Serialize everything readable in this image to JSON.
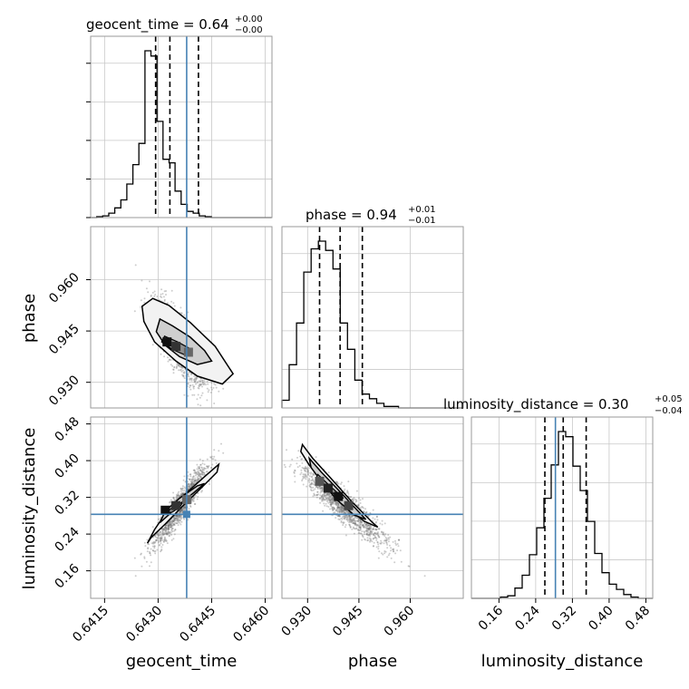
{
  "chart_data": {
    "type": "corner",
    "parameters": [
      "geocent_time",
      "phase",
      "luminosity_distance"
    ],
    "truths": {
      "geocent_time": 0.6438,
      "phase": null,
      "luminosity_distance": 0.283
    },
    "colors": {
      "truth": "#4682b4",
      "hist": "#000000",
      "grid": "#c8c8c8",
      "frame": "#9a9a9a",
      "scatter": "#707070"
    },
    "titles": [
      {
        "label": "geocent_time = 0.64",
        "plus": "+0.00",
        "minus": "−0.00"
      },
      {
        "label": "phase = 0.94",
        "plus": "+0.01",
        "minus": "−0.01"
      },
      {
        "label": "luminosity_distance = 0.30",
        "plus": "+0.05",
        "minus": "−0.04"
      }
    ],
    "axis_labels": {
      "geocent_time": "geocent_time",
      "phase": "phase",
      "luminosity_distance": "luminosity_distance"
    },
    "ranges": {
      "geocent_time": [
        0.64111,
        0.64619
      ],
      "phase": [
        0.9225,
        0.9755
      ],
      "luminosity_distance": [
        0.1,
        0.495
      ]
    },
    "ticks": {
      "geocent_time": {
        "values": [
          0.6415,
          0.643,
          0.6445,
          0.646
        ],
        "labels": [
          "0.6415",
          "0.6430",
          "0.6445",
          "0.6460"
        ]
      },
      "phase": {
        "values": [
          0.93,
          0.945,
          0.96
        ],
        "labels": [
          "0.930",
          "0.945",
          "0.960"
        ]
      },
      "luminosity_distance": {
        "values": [
          0.16,
          0.24,
          0.32,
          0.4,
          0.48
        ],
        "labels": [
          "0.16",
          "0.24",
          "0.32",
          "0.40",
          "0.48"
        ]
      }
    },
    "quantiles": {
      "geocent_time": [
        0.64293,
        0.64333,
        0.64413
      ],
      "phase": [
        0.9335,
        0.9395,
        0.946
      ],
      "luminosity_distance": [
        0.26,
        0.3,
        0.35
      ]
    },
    "histograms": {
      "geocent_time": {
        "edges_start": 0.64111,
        "bin_width": 0.000169,
        "counts": [
          0,
          1,
          2,
          5,
          11,
          20,
          38,
          60,
          84,
          189,
          183,
          109,
          66,
          62,
          30,
          15,
          7,
          5,
          2,
          1,
          0,
          0,
          0,
          0,
          0,
          0,
          0,
          0,
          0,
          0
        ]
      },
      "phase": {
        "edges_start": 0.9225,
        "bin_width": 0.00213,
        "counts": [
          5,
          28,
          55,
          88,
          103,
          108,
          102,
          90,
          55,
          38,
          18,
          9,
          6,
          3,
          1,
          1,
          0,
          0,
          0,
          0,
          0,
          0,
          0,
          0,
          0
        ]
      },
      "luminosity_distance": {
        "edges_start": 0.1,
        "bin_width": 0.0158,
        "counts": [
          0,
          0,
          0,
          0,
          1,
          2,
          8,
          18,
          34,
          55,
          78,
          104,
          130,
          126,
          103,
          84,
          60,
          35,
          20,
          11,
          7,
          3,
          1,
          0,
          0
        ]
      }
    },
    "grid": true,
    "legend": "none"
  }
}
